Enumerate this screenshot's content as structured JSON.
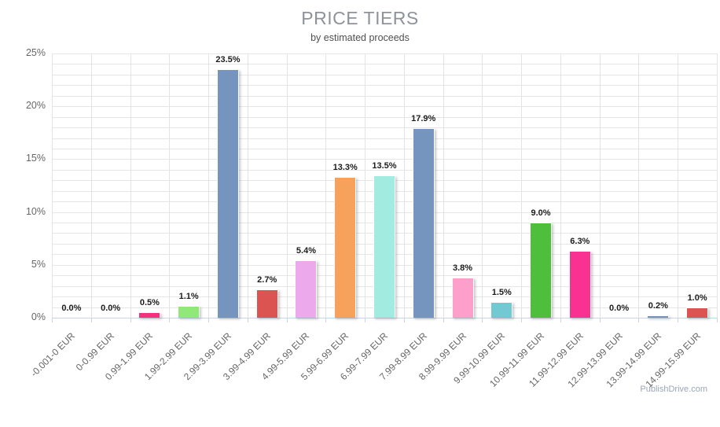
{
  "header": {
    "title": "PRICE TIERS",
    "subtitle": "by estimated proceeds"
  },
  "footer": {
    "watermark": "PublishDrive.com"
  },
  "chart_data": {
    "type": "bar",
    "title": "PRICE TIERS",
    "subtitle": "by estimated proceeds",
    "categories": [
      "-0.001-0 EUR",
      "0-0.99 EUR",
      "0.99-1.99 EUR",
      "1.99-2.99 EUR",
      "2.99-3.99 EUR",
      "3.99-4.99 EUR",
      "4.99-5.99 EUR",
      "5.99-6.99 EUR",
      "6.99-7.99 EUR",
      "7.99-8.99 EUR",
      "8.99-9.99 EUR",
      "9.99-10.99 EUR",
      "10.99-11.99 EUR",
      "11.99-12.99 EUR",
      "12.99-13.99 EUR",
      "13.99-14.99 EUR",
      "14.99-15.99 EUR"
    ],
    "values": [
      0.0,
      0.0,
      0.5,
      1.1,
      23.5,
      2.7,
      5.4,
      13.3,
      13.5,
      17.9,
      3.8,
      1.5,
      9.0,
      6.3,
      0.0,
      0.2,
      1.0
    ],
    "value_labels": [
      "0.0%",
      "0.0%",
      "0.5%",
      "1.1%",
      "23.5%",
      "2.7%",
      "5.4%",
      "13.3%",
      "13.5%",
      "17.9%",
      "3.8%",
      "1.5%",
      "9.0%",
      "6.3%",
      "0.0%",
      "0.2%",
      "1.0%"
    ],
    "bar_colors": [
      null,
      null,
      "#F5317F",
      "#90E878",
      "#7695BE",
      "#DC5452",
      "#ECA9EC",
      "#F6A25D",
      "#A2EBE0",
      "#7695BE",
      "#FC9FCA",
      "#72C9D2",
      "#4EBE3C",
      "#F93190",
      null,
      "#7695BE",
      "#DC5452"
    ],
    "xlabel": "",
    "ylabel": "",
    "ylim": [
      0,
      25
    ],
    "y_major_ticks": [
      "0%",
      "5%",
      "10%",
      "15%",
      "20%",
      "25%"
    ],
    "y_major_step": 5,
    "y_minor_step": 1,
    "grid": "on",
    "legend": "none"
  },
  "colors": {
    "title": "#8d939b",
    "subtitle": "#4f4f4f",
    "axis_label": "#666666",
    "value_label": "#1c1c1c",
    "gridline": "#e6e6e6",
    "axis_line": "#c9d5e3",
    "watermark": "#9aa7b8",
    "background": "#ffffff"
  }
}
